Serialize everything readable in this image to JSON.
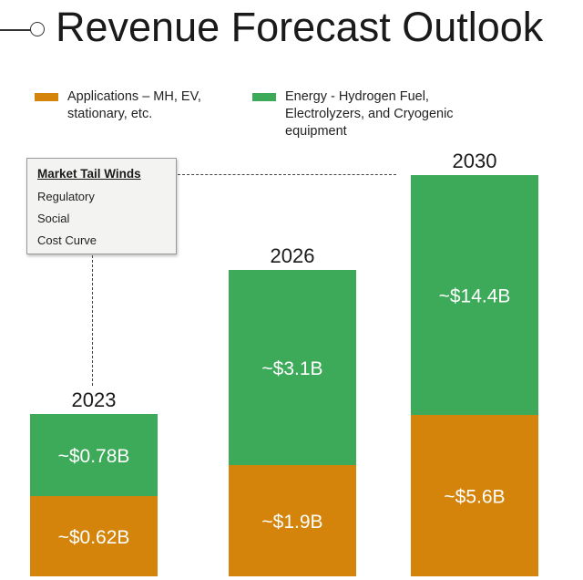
{
  "title": "Revenue Forecast Outlook",
  "legend": [
    {
      "label": "Applications – MH, EV, stationary, etc.",
      "color": "#D4840A"
    },
    {
      "label": "Energy - Hydrogen Fuel, Electrolyzers, and Cryogenic equipment",
      "color": "#3DAA5A"
    }
  ],
  "tailwinds": {
    "title": "Market Tail Winds",
    "items": [
      "Regulatory",
      "Social",
      "Cost Curve"
    ]
  },
  "chart_data": {
    "type": "bar",
    "stacked": true,
    "title": "Revenue Forecast Outlook",
    "categories": [
      "2023",
      "2026",
      "2030"
    ],
    "series": [
      {
        "name": "Applications – MH, EV, stationary, etc.",
        "values": [
          0.62,
          1.9,
          5.6
        ],
        "labels": [
          "~$0.62B",
          "~$1.9B",
          "~$5.6B"
        ],
        "color": "#D4840A"
      },
      {
        "name": "Energy - Hydrogen Fuel, Electrolyzers, and Cryogenic equipment",
        "values": [
          0.78,
          3.1,
          14.4
        ],
        "labels": [
          "~$0.78B",
          "~$3.1B",
          "~$14.4B"
        ],
        "color": "#3DAA5A"
      }
    ],
    "xlabel": "",
    "ylabel": "",
    "grid": false,
    "legend_position": "top"
  }
}
